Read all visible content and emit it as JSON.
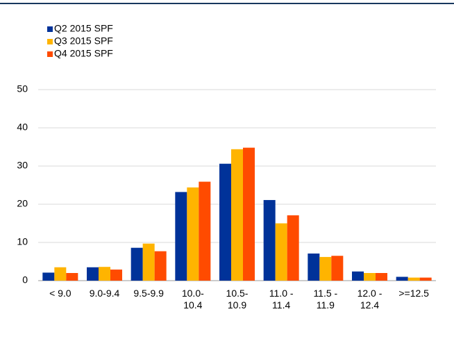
{
  "chart_data": {
    "type": "bar",
    "categories": [
      "< 9.0",
      "9.0-9.4",
      "9.5-9.9",
      "10.0-\n10.4",
      "10.5-\n10.9",
      "11.0 -\n11.4",
      "11.5 -\n11.9",
      "12.0 -\n12.4",
      ">=12.5"
    ],
    "series": [
      {
        "name": "Q2 2015 SPF",
        "color": "#003299",
        "values": [
          2.1,
          3.5,
          8.6,
          23.2,
          30.6,
          21.1,
          7.1,
          2.4,
          1.0
        ]
      },
      {
        "name": "Q3 2015 SPF",
        "color": "#ffb400",
        "values": [
          3.5,
          3.6,
          9.7,
          24.4,
          34.4,
          15.0,
          6.2,
          2.0,
          0.8
        ]
      },
      {
        "name": "Q4 2015 SPF",
        "color": "#ff4b00",
        "values": [
          2.0,
          2.9,
          7.7,
          25.9,
          34.8,
          17.1,
          6.5,
          2.0,
          0.8
        ]
      }
    ],
    "ylim": [
      0,
      50
    ],
    "yticks": [
      0,
      10,
      20,
      30,
      40,
      50
    ],
    "grid": true,
    "legend": "top-left"
  }
}
